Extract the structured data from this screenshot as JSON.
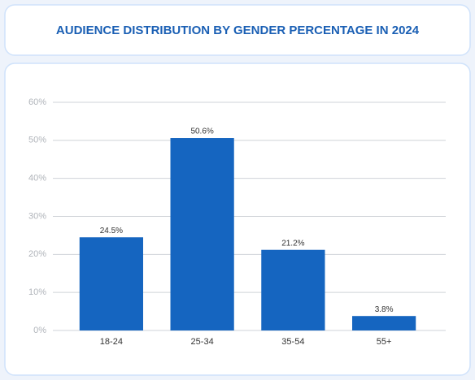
{
  "chart_data": {
    "type": "bar",
    "title": "AUDIENCE DISTRIBUTION BY GENDER PERCENTAGE IN 2024",
    "categories": [
      "18-24",
      "25-34",
      "35-54",
      "55+"
    ],
    "values": [
      24.5,
      50.6,
      21.2,
      3.8
    ],
    "value_labels": [
      "24.5%",
      "50.6%",
      "21.2%",
      "3.8%"
    ],
    "color": "#1565c0",
    "ylim": [
      0,
      60
    ],
    "yticks": [
      {
        "value": 0,
        "label": "0%"
      },
      {
        "value": 10,
        "label": "10%"
      },
      {
        "value": 20,
        "label": "20%"
      },
      {
        "value": 30,
        "label": "30%"
      },
      {
        "value": 40,
        "label": "40%"
      },
      {
        "value": 50,
        "label": "50%"
      },
      {
        "value": 60,
        "label": "60%"
      }
    ],
    "grid": true
  }
}
